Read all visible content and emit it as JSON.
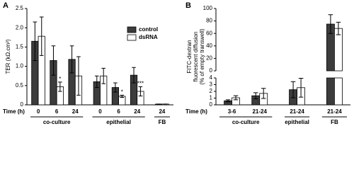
{
  "chart_data": [
    {
      "type": "bar",
      "panel": "A",
      "ylabel": "TER (kΩ.cm²)",
      "xlabel": "Time (h)",
      "groups": [
        {
          "name": "co-culture",
          "categories": [
            "0",
            "6",
            "24"
          ]
        },
        {
          "name": "epithelial",
          "categories": [
            "0",
            "6",
            "24"
          ]
        },
        {
          "name": "FB",
          "categories": [
            "24"
          ]
        }
      ],
      "series": [
        {
          "name": "control",
          "color": "#3c3c3c",
          "values": [
            1.65,
            1.15,
            1.18,
            0.6,
            0.45,
            0.77,
            0.02
          ],
          "errors": [
            0.5,
            0.38,
            0.35,
            0.15,
            0.12,
            0.2,
            0
          ]
        },
        {
          "name": "dsRNA",
          "color": "#ffffff",
          "values": [
            1.78,
            0.47,
            0.75,
            0.75,
            0.22,
            0.35,
            0.02
          ],
          "errors": [
            0.5,
            0.12,
            0.5,
            0.2,
            0.03,
            0.12,
            0
          ],
          "annotations": [
            null,
            "*",
            null,
            null,
            "*",
            "***",
            null
          ]
        }
      ],
      "ylim": [
        0,
        2.5
      ],
      "yticks": [
        0,
        0.5,
        {
          "value": 1,
          "label": "1.0"
        },
        1.5,
        {
          "value": 2,
          "label": "2.0"
        },
        2.5
      ],
      "legend": "upper right"
    },
    {
      "type": "bar",
      "panel": "B",
      "ylabel": [
        "FITC-dextran",
        "fluorescent diffusion",
        "(% of empty transwell)"
      ],
      "xlabel": "Time (h)",
      "groups": [
        {
          "name": "co-culture",
          "categories": [
            "3-6",
            "21-24"
          ]
        },
        {
          "name": "epithelial",
          "categories": [
            "21-24"
          ]
        },
        {
          "name": "FB",
          "categories": [
            "21-24"
          ]
        }
      ],
      "series": [
        {
          "name": "control",
          "color": "#3c3c3c",
          "values": [
            0.6,
            1.35,
            2.25,
            75
          ],
          "errors": [
            0.15,
            0.45,
            1.2,
            15
          ]
        },
        {
          "name": "dsRNA",
          "color": "#ffffff",
          "values": [
            1.05,
            1.7,
            2.55,
            68
          ],
          "errors": [
            0.3,
            0.75,
            1.4,
            10
          ]
        }
      ],
      "ylim": [
        0,
        4
      ],
      "yticks": [
        0,
        1,
        2,
        3,
        4
      ],
      "axis_break": true,
      "y2lim": [
        0,
        100
      ],
      "y2ticks": [
        0,
        20,
        40,
        60,
        80,
        100
      ]
    }
  ]
}
